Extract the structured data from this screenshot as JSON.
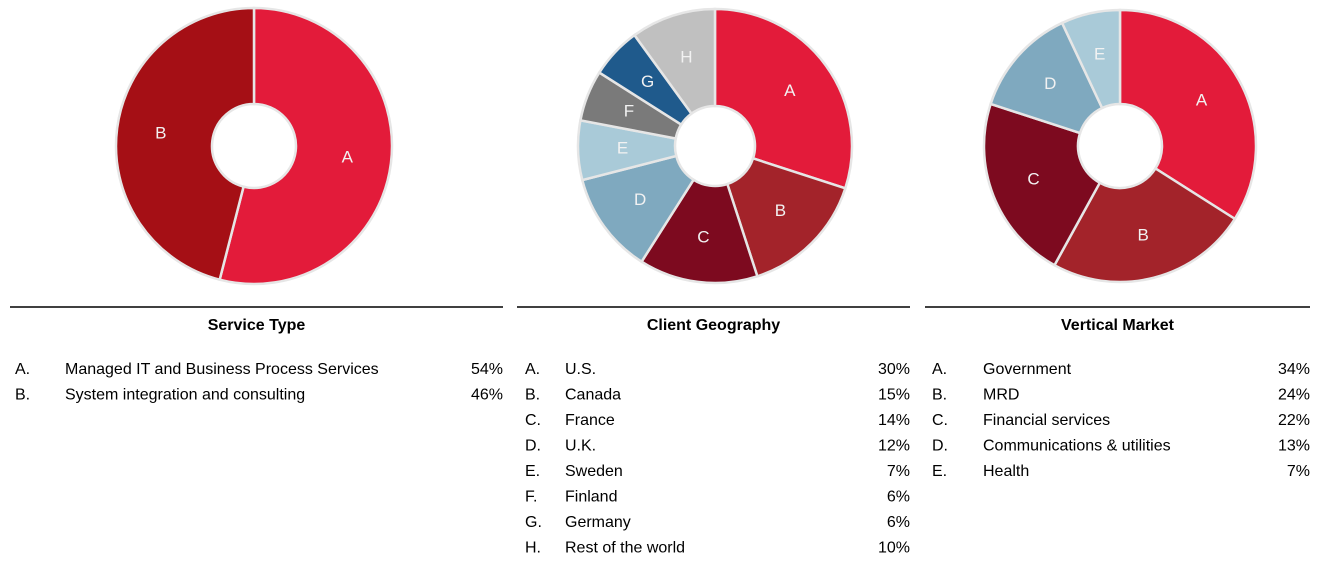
{
  "chart_data": [
    {
      "type": "pie",
      "title": "Service Type",
      "list_markers": [
        "A.",
        "B."
      ],
      "slice_labels": [
        "A",
        "B"
      ],
      "categories": [
        "Managed IT and Business Process Services",
        "System integration and consulting"
      ],
      "values": [
        54,
        46
      ],
      "value_labels": [
        "54%",
        "46%"
      ],
      "colors": [
        "#e31b3a",
        "#a50f15"
      ]
    },
    {
      "type": "pie",
      "title": "Client Geography",
      "list_markers": [
        "A.",
        "B.",
        "C.",
        "D.",
        "E.",
        "F.",
        "G.",
        "H."
      ],
      "slice_labels": [
        "A",
        "B",
        "C",
        "D",
        "E",
        "F",
        "G",
        "H"
      ],
      "categories": [
        "U.S.",
        "Canada",
        "France",
        "U.K.",
        "Sweden",
        "Finland",
        "Germany",
        "Rest of the world"
      ],
      "values": [
        30,
        15,
        14,
        12,
        7,
        6,
        6,
        10
      ],
      "value_labels": [
        "30%",
        "15%",
        "14%",
        "12%",
        "7%",
        "6%",
        "6%",
        "10%"
      ],
      "colors": [
        "#e31b3a",
        "#a3232a",
        "#7d0a1f",
        "#7fa9bf",
        "#a9cad8",
        "#7a7a7a",
        "#1f5a8c",
        "#c0c0c0"
      ]
    },
    {
      "type": "pie",
      "title": "Vertical Market",
      "list_markers": [
        "A.",
        "B.",
        "C.",
        "D.",
        "E."
      ],
      "slice_labels": [
        "A",
        "B",
        "C",
        "D",
        "E"
      ],
      "categories": [
        "Government",
        "MRD",
        "Financial services",
        "Communications & utilities",
        "Health"
      ],
      "values": [
        34,
        24,
        22,
        13,
        7
      ],
      "value_labels": [
        "34%",
        "24%",
        "22%",
        "13%",
        "7%"
      ],
      "colors": [
        "#e31b3a",
        "#a3232a",
        "#7d0a1f",
        "#7fa9bf",
        "#a9cad8"
      ]
    }
  ]
}
